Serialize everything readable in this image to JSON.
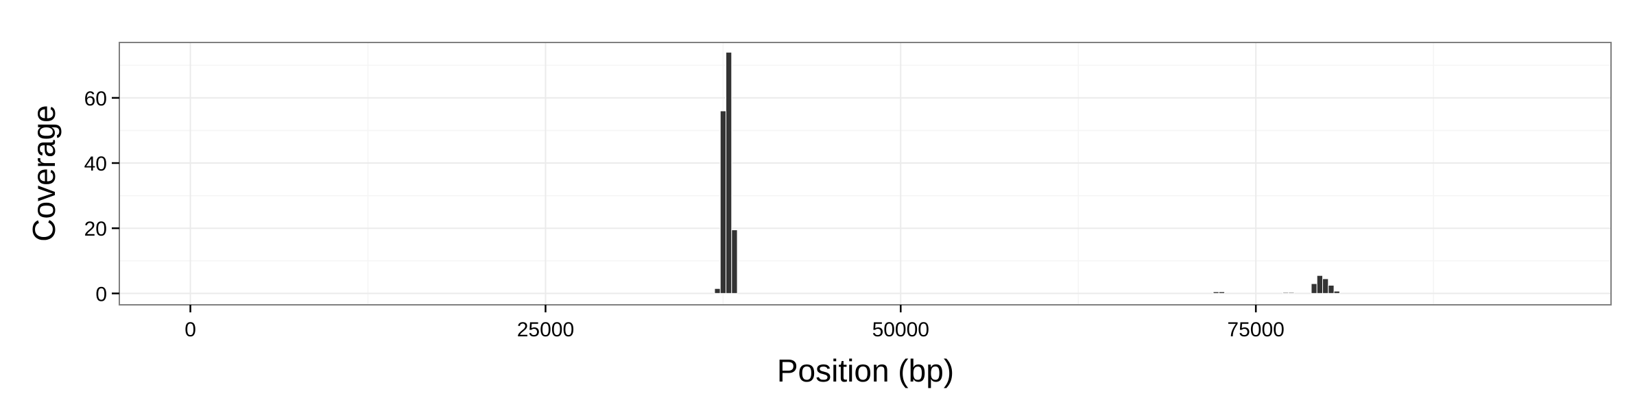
{
  "chart_data": {
    "type": "bar",
    "title": "",
    "xlabel": "Position (bp)",
    "ylabel": "Coverage",
    "xlim": [
      -5000,
      100000
    ],
    "ylim": [
      -3.5,
      77
    ],
    "x_ticks": [
      0,
      25000,
      50000,
      75000
    ],
    "x_tick_labels": [
      "0",
      "25000",
      "50000",
      "75000"
    ],
    "y_ticks": [
      0,
      20,
      40,
      60
    ],
    "y_tick_labels": [
      "0",
      "20",
      "40",
      "60"
    ],
    "bin_width": 400,
    "grid": true,
    "legend": "none",
    "colors": {
      "bar": "#333333",
      "panel_border": "#7f7f7f",
      "grid_major": "#ebebeb",
      "grid_minor": "#f5f5f5"
    },
    "x": [
      37100,
      37500,
      37900,
      38300,
      72200,
      72600,
      77100,
      77500,
      79100,
      79500,
      79900,
      80300,
      80700
    ],
    "values": [
      1.5,
      56,
      74,
      19.5,
      0.5,
      0.5,
      0.3,
      0.3,
      3.0,
      5.5,
      4.5,
      2.5,
      0.7
    ]
  }
}
